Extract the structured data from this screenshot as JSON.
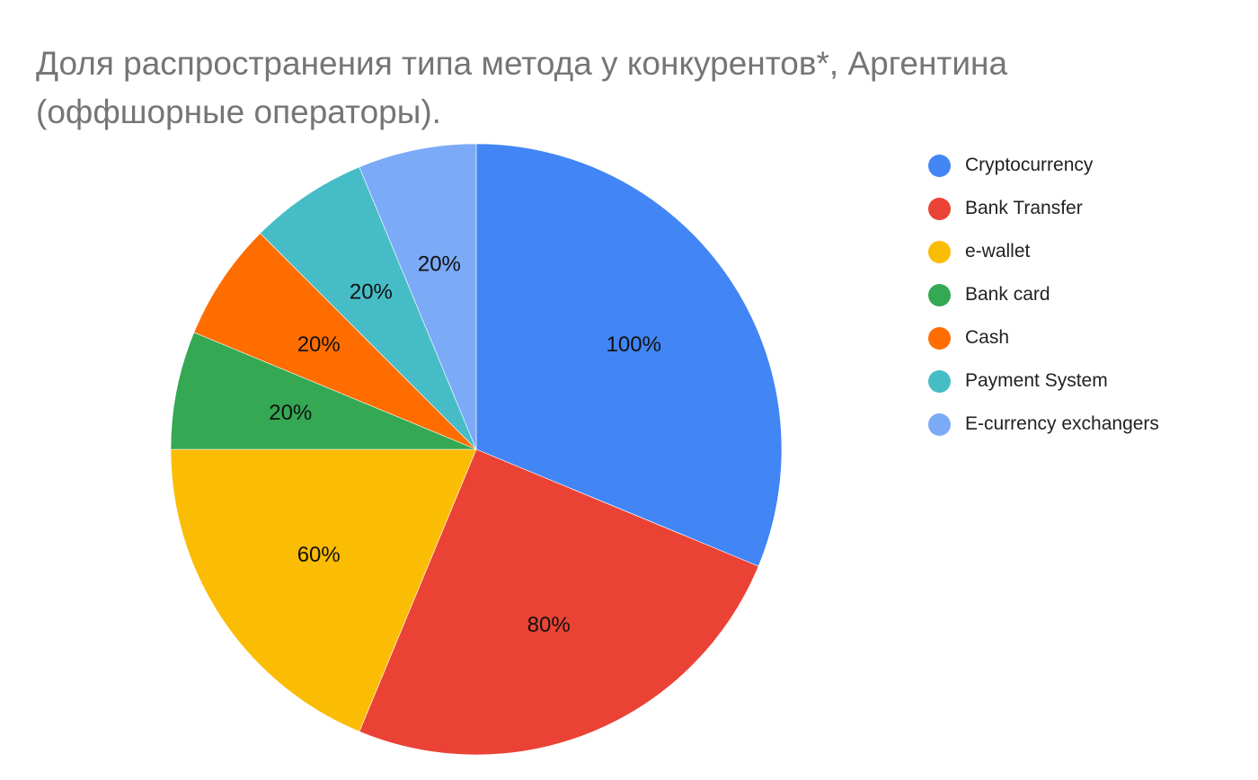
{
  "chart_data": {
    "type": "pie",
    "title": "Доля распространения типа метода у конкурентов*, Аргентина (оффшорные операторы).",
    "title_lines": [
      "Доля распространения типа метода у конкурентов*, Аргентина",
      "(оффшорные операторы)."
    ],
    "categories": [
      "Cryptocurrency",
      "Bank Transfer",
      "e-wallet",
      "Bank card",
      "Cash",
      "Payment System",
      "E-currency exchangers"
    ],
    "values": [
      100,
      80,
      60,
      20,
      20,
      20,
      20
    ],
    "labels": [
      "100%",
      "80%",
      "60%",
      "20%",
      "20%",
      "20%",
      "20%"
    ],
    "colors": [
      "#4285f4",
      "#ea4335",
      "#fbbc04",
      "#34a853",
      "#ff6d01",
      "#46bdc6",
      "#7baaf7"
    ],
    "start_angle": "top, clockwise",
    "legend_position": "right"
  },
  "legend": {
    "items": [
      {
        "label": "Cryptocurrency",
        "color": "#4285f4"
      },
      {
        "label": "Bank Transfer",
        "color": "#ea4335"
      },
      {
        "label": "e-wallet",
        "color": "#fbbc04"
      },
      {
        "label": "Bank card",
        "color": "#34a853"
      },
      {
        "label": "Cash",
        "color": "#ff6d01"
      },
      {
        "label": "Payment System",
        "color": "#46bdc6"
      },
      {
        "label": "E-currency exchangers",
        "color": "#7baaf7"
      }
    ]
  }
}
